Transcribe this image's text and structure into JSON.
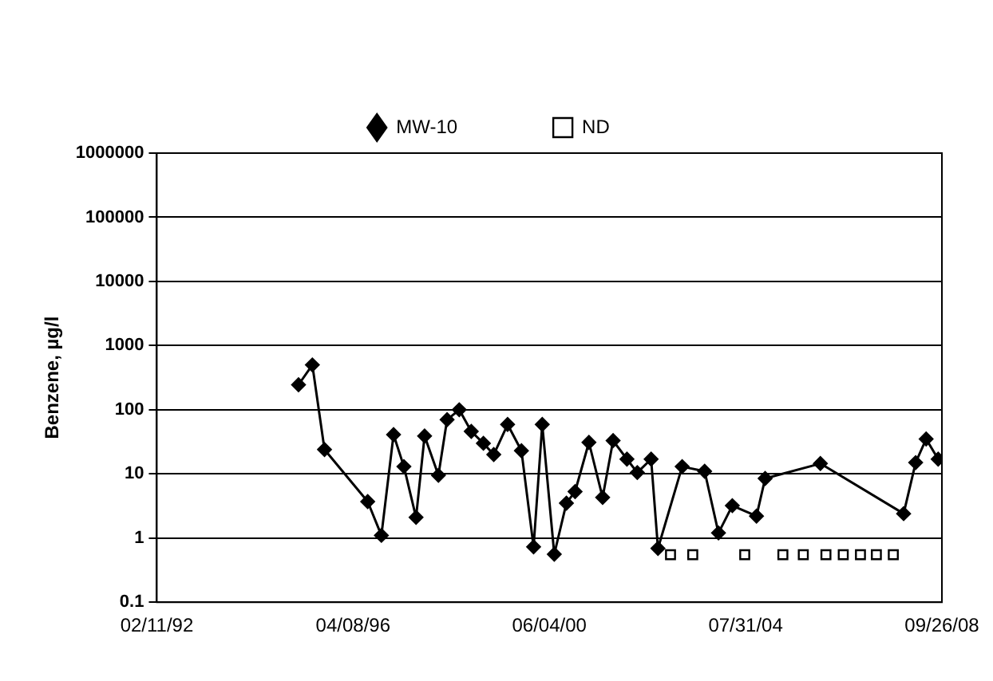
{
  "chart_data": {
    "type": "line",
    "ylabel": "Benzene, µg/l",
    "log": true,
    "grid": "y",
    "legend": "top",
    "xlim": [
      "1992-02-11",
      "2008-09-26"
    ],
    "xticks": [
      {
        "value": "1992-02-11",
        "label": "02/11/92"
      },
      {
        "value": "1996-04-08",
        "label": "04/08/96"
      },
      {
        "value": "2000-06-04",
        "label": "06/04/00"
      },
      {
        "value": "2004-07-31",
        "label": "07/31/04"
      },
      {
        "value": "2008-09-26",
        "label": "09/26/08"
      }
    ],
    "ylim": [
      0.1,
      1000000
    ],
    "yticks": [
      0.1,
      1,
      10,
      100,
      1000,
      10000,
      100000,
      1000000
    ],
    "series": [
      {
        "name": "MW-10",
        "color": "#000000",
        "marker": "diamond",
        "line_style": "solid",
        "x": [
          "1995-02-11",
          "1995-05-29",
          "1995-08-31",
          "1996-07-30",
          "1996-11-13",
          "1997-02-15",
          "1997-05-06",
          "1997-08-08",
          "1997-10-13",
          "1998-01-28",
          "1998-04-05",
          "1998-07-08",
          "1998-10-09",
          "1999-01-11",
          "1999-04-01",
          "1999-07-17",
          "1999-11-01",
          "2000-02-03",
          "2000-04-10",
          "2000-07-12",
          "2000-10-14",
          "2000-12-20",
          "2001-04-06",
          "2001-07-21",
          "2001-10-10",
          "2002-01-25",
          "2002-04-15",
          "2002-07-31",
          "2002-09-22",
          "2003-03-28",
          "2003-09-18",
          "2004-01-03",
          "2004-04-19",
          "2004-10-23",
          "2004-12-29",
          "2006-03-01",
          "2007-12-05",
          "2008-03-07",
          "2008-05-27",
          "2008-08-28"
        ],
        "values": [
          245,
          500,
          24,
          3.7,
          1.1,
          41,
          13,
          2.1,
          39,
          9.5,
          70,
          100,
          46,
          30,
          20,
          59,
          23,
          0.73,
          59,
          0.56,
          3.5,
          5.3,
          31,
          4.3,
          33,
          17,
          10.5,
          17,
          0.69,
          13,
          11,
          1.2,
          3.2,
          2.2,
          8.5,
          14.5,
          2.4,
          15,
          35,
          17
        ]
      },
      {
        "name": "ND",
        "type": "scatter",
        "color": "#000000",
        "marker": "square",
        "x": [
          "2002-12-28",
          "2003-06-18",
          "2004-07-24",
          "2005-05-15",
          "2005-10-20",
          "2006-04-13",
          "2006-08-25",
          "2007-01-05",
          "2007-05-08",
          "2007-09-16"
        ],
        "values": [
          0.55,
          0.55,
          0.55,
          0.55,
          0.55,
          0.55,
          0.55,
          0.55,
          0.55,
          0.55
        ]
      }
    ]
  }
}
